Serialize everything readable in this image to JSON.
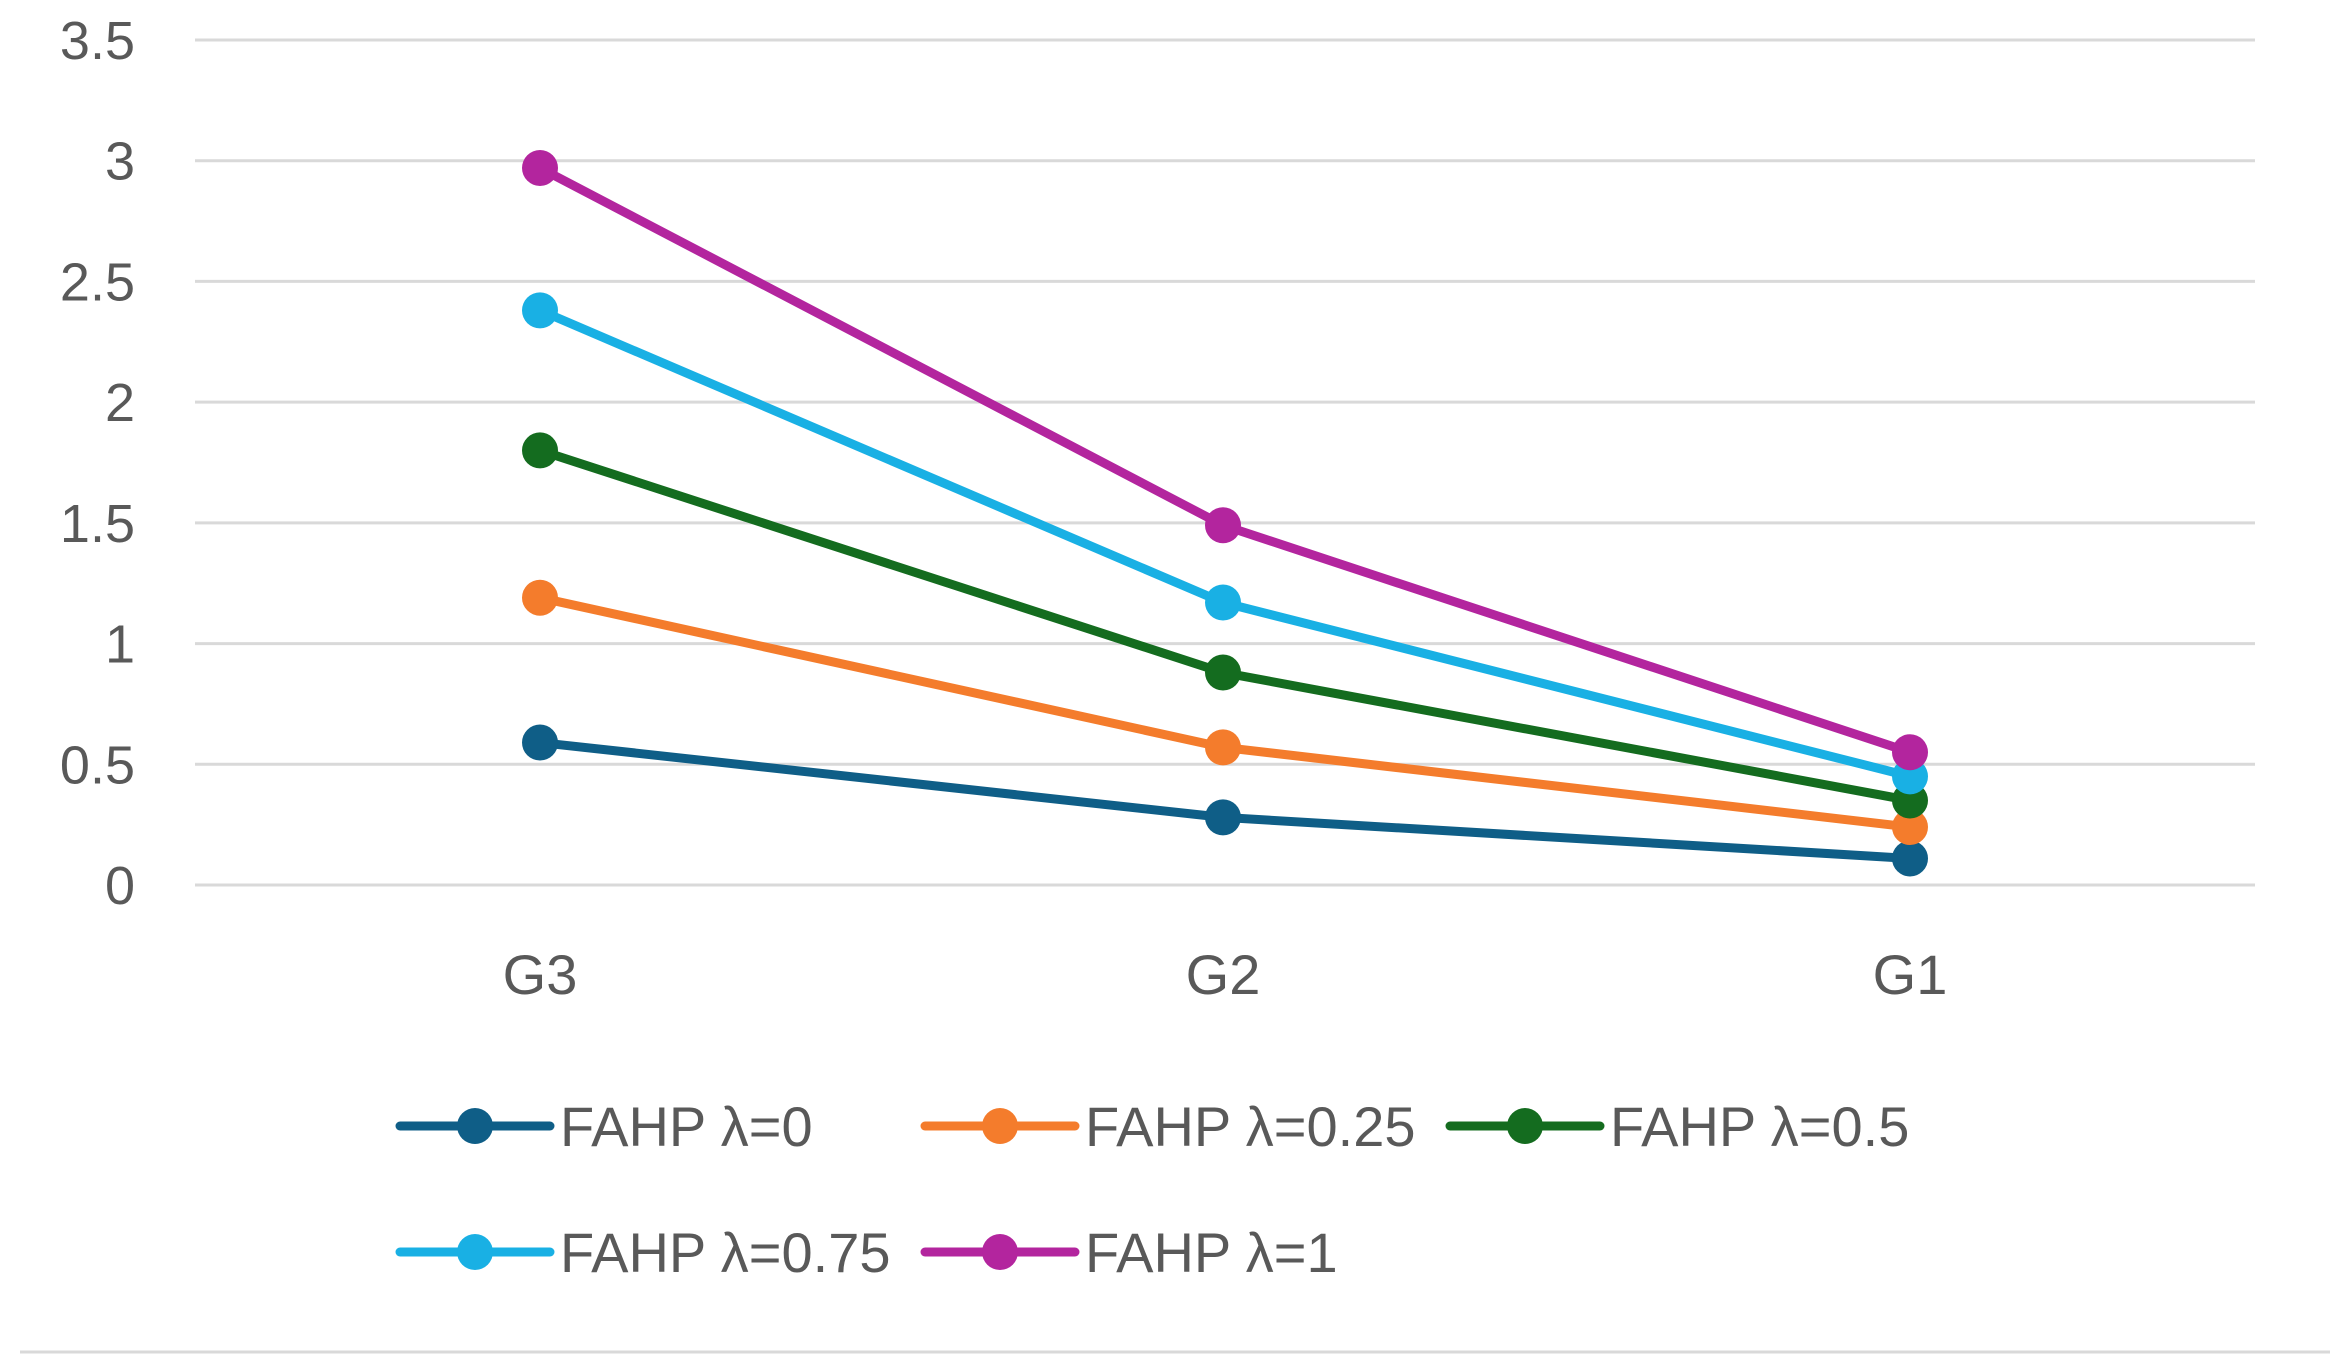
{
  "chart_data": {
    "type": "line",
    "title": "",
    "xlabel": "",
    "ylabel": "",
    "categories": [
      "G3",
      "G2",
      "G1"
    ],
    "ylim": [
      0,
      3.5
    ],
    "yticks": [
      0,
      0.5,
      1,
      1.5,
      2,
      2.5,
      3,
      3.5
    ],
    "ytick_labels": [
      "0",
      "0.5",
      "1",
      "1.5",
      "2",
      "2.5",
      "3",
      "3.5"
    ],
    "grid": true,
    "legend_position": "bottom",
    "series": [
      {
        "name": "FAHP λ=0",
        "color": "#0f5e87",
        "values": [
          0.59,
          0.28,
          0.11
        ]
      },
      {
        "name": "FAHP λ=0.25",
        "color": "#f47c2c",
        "values": [
          1.19,
          0.57,
          0.24
        ]
      },
      {
        "name": "FAHP λ=0.5",
        "color": "#146c1f",
        "values": [
          1.8,
          0.88,
          0.35
        ]
      },
      {
        "name": "FAHP λ=0.75",
        "color": "#19b0e4",
        "values": [
          2.38,
          1.17,
          0.45
        ]
      },
      {
        "name": "FAHP λ=1",
        "color": "#b3259e",
        "values": [
          2.97,
          1.49,
          0.55
        ]
      }
    ]
  }
}
